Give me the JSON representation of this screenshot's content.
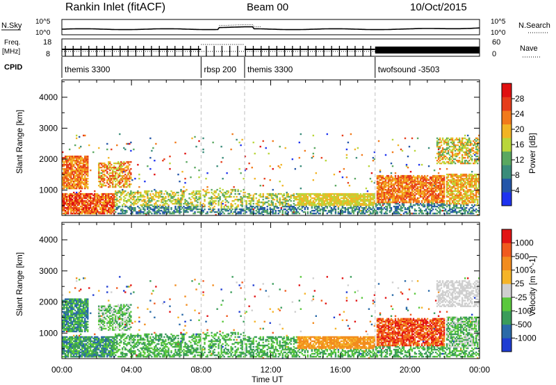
{
  "header": {
    "station": "Rankin Inlet (fitACF)",
    "beam": "Beam 00",
    "date": "10/Oct/2015"
  },
  "noise_panel": {
    "left_label": "N.Sky",
    "right_label": "N.Search",
    "left_ticks": [
      "10^5",
      "10^0"
    ],
    "right_ticks": [
      "10^5",
      "10^0"
    ]
  },
  "freq_panel": {
    "left_label_line1": "Freq.",
    "left_label_line2": "[MHz]",
    "right_label": "Nave",
    "left_ticks": [
      "18",
      "8"
    ],
    "right_ticks": [
      "60",
      "0"
    ]
  },
  "cpid_panel": {
    "label": "CPID",
    "segments": [
      {
        "name": "themis 3300",
        "start_hour": 0
      },
      {
        "name": "rbsp 200",
        "start_hour": 8
      },
      {
        "name": "themis 3300",
        "start_hour": 10.5
      },
      {
        "name": "twofsound -3503",
        "start_hour": 18
      }
    ]
  },
  "colors": {
    "power_scale": [
      "#1e33f0",
      "#2456a8",
      "#3a8c7a",
      "#5aa860",
      "#b9d63a",
      "#f2b424",
      "#f27a1a",
      "#e63d1a",
      "#e01010"
    ],
    "velocity_scale": [
      "#e21414",
      "#f05a1e",
      "#f28c1e",
      "#f5b428",
      "#cfcfcf",
      "#5ac83c",
      "#3a9c5a",
      "#2a6aa8",
      "#1e3cd2"
    ]
  },
  "chart_data": [
    {
      "type": "heatmap",
      "title": "Power",
      "xlabel": "",
      "ylabel": "Slant Range [km]",
      "x_range_hours": [
        0,
        24
      ],
      "ylim": [
        180,
        4560
      ],
      "y_ticks": [
        1000,
        2000,
        3000,
        4000
      ],
      "colorbar_label": "Power [dB]",
      "colorbar_ticks": [
        "28",
        "24",
        "20",
        "16",
        "12",
        "8",
        "4"
      ],
      "colorbar_range": [
        0,
        32
      ],
      "mode_boundaries_hours": [
        8,
        10.5,
        18
      ]
    },
    {
      "type": "heatmap",
      "title": "Velocity",
      "xlabel": "Time UT",
      "ylabel": "Slant Range [km]",
      "x_range_hours": [
        0,
        24
      ],
      "x_ticks": [
        "00:00",
        "04:00",
        "08:00",
        "12:00",
        "16:00",
        "20:00",
        "00:00"
      ],
      "ylim": [
        180,
        4560
      ],
      "y_ticks": [
        1000,
        2000,
        3000,
        4000
      ],
      "colorbar_label": "Velocity [m s^-1]",
      "colorbar_ticks": [
        "1000",
        "500",
        "100",
        "25",
        "-25",
        "-100",
        "-500",
        "-1000"
      ],
      "mode_boundaries_hours": [
        8,
        10.5,
        18
      ]
    }
  ],
  "axis_label_x": "Time UT"
}
